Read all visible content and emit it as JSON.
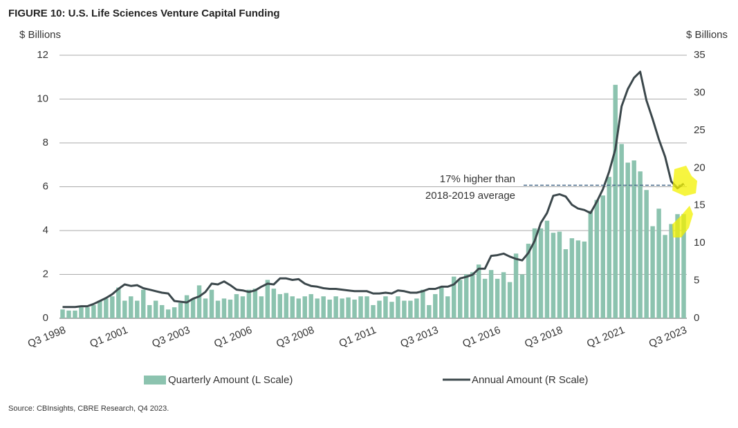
{
  "chart_data": {
    "type": "bar_line",
    "title": "FIGURE 10: U.S. Life Sciences Venture Capital Funding",
    "y_label": "$ Billions",
    "y2_label": "$ Billions",
    "source": "Source: CBInsights, CBRE Research, Q4 2023.",
    "annotation": [
      "17% higher than",
      "2018-2019 average"
    ],
    "reference_line": {
      "value": 17.7,
      "axis": "y2"
    },
    "categories": [
      "Q3 1998",
      null,
      null,
      null,
      null,
      null,
      null,
      null,
      null,
      null,
      "Q1 2001",
      null,
      null,
      null,
      null,
      null,
      null,
      null,
      null,
      null,
      "Q3 2003",
      null,
      null,
      null,
      null,
      null,
      null,
      null,
      null,
      null,
      "Q1 2006",
      null,
      null,
      null,
      null,
      null,
      null,
      null,
      null,
      null,
      "Q3 2008",
      null,
      null,
      null,
      null,
      null,
      null,
      null,
      null,
      null,
      "Q1 2011",
      null,
      null,
      null,
      null,
      null,
      null,
      null,
      null,
      null,
      "Q3 2013",
      null,
      null,
      null,
      null,
      null,
      null,
      null,
      null,
      null,
      "Q1 2016",
      null,
      null,
      null,
      null,
      null,
      null,
      null,
      null,
      null,
      "Q3 2018",
      null,
      null,
      null,
      null,
      null,
      null,
      null,
      null,
      null,
      "Q1 2021",
      null,
      null,
      null,
      null,
      null,
      null,
      null,
      null,
      null,
      "Q3 2023"
    ],
    "series": [
      {
        "name": "Quarterly Amount (L Scale)",
        "type": "bar",
        "color": "#8cc3af",
        "values": [
          0.4,
          0.35,
          0.35,
          0.5,
          0.5,
          0.6,
          0.8,
          0.9,
          1.0,
          1.4,
          0.8,
          1.0,
          0.8,
          1.3,
          0.6,
          0.8,
          0.6,
          0.4,
          0.5,
          0.7,
          1.05,
          0.9,
          1.5,
          0.9,
          1.3,
          0.8,
          0.9,
          0.85,
          1.1,
          1.0,
          1.3,
          1.35,
          1.0,
          1.75,
          1.35,
          1.1,
          1.15,
          1.0,
          0.9,
          1.0,
          1.1,
          0.9,
          1.0,
          0.85,
          1.0,
          0.9,
          0.95,
          0.85,
          1.0,
          1.0,
          0.6,
          0.8,
          1.0,
          0.75,
          1.0,
          0.8,
          0.8,
          0.9,
          1.3,
          0.6,
          1.1,
          1.4,
          1.0,
          1.9,
          1.75,
          2.0,
          2.1,
          2.45,
          1.8,
          2.2,
          1.8,
          2.1,
          1.65,
          2.95,
          2.0,
          3.4,
          4.1,
          4.1,
          4.45,
          3.9,
          3.95,
          3.15,
          3.65,
          3.55,
          3.5,
          4.9,
          5.4,
          5.6,
          6.45,
          10.65,
          7.95,
          7.1,
          7.2,
          6.7,
          5.85,
          4.2,
          5.0,
          3.8,
          4.3,
          4.75,
          4.75
        ]
      },
      {
        "name": "Annual Amount (R Scale)",
        "type": "line",
        "axis": "y2",
        "color": "#3b474b",
        "values": [
          1.5,
          1.5,
          1.5,
          1.6,
          1.6,
          1.9,
          2.3,
          2.7,
          3.2,
          3.9,
          4.5,
          4.3,
          4.4,
          4.0,
          3.8,
          3.6,
          3.4,
          3.3,
          2.3,
          2.2,
          2.1,
          2.6,
          2.9,
          3.5,
          4.6,
          4.5,
          4.9,
          4.4,
          3.8,
          3.7,
          3.5,
          3.7,
          4.2,
          4.6,
          4.5,
          5.3,
          5.3,
          5.1,
          5.2,
          4.6,
          4.3,
          4.2,
          4.0,
          3.9,
          3.9,
          3.8,
          3.7,
          3.6,
          3.6,
          3.6,
          3.3,
          3.3,
          3.4,
          3.3,
          3.7,
          3.6,
          3.4,
          3.4,
          3.6,
          3.9,
          3.9,
          4.2,
          4.2,
          4.5,
          5.3,
          5.5,
          5.8,
          6.6,
          6.6,
          8.3,
          8.4,
          8.6,
          8.2,
          7.9,
          7.7,
          8.7,
          10.3,
          12.7,
          14.0,
          16.3,
          16.5,
          16.2,
          15.1,
          14.6,
          14.4,
          14.0,
          15.5,
          17.2,
          19.5,
          22.5,
          28.2,
          30.5,
          32.0,
          32.8,
          29.0,
          26.5,
          23.8,
          21.5,
          18.2,
          17.3,
          17.9
        ]
      }
    ],
    "ylim": [
      0,
      12
    ],
    "yticks": [
      0,
      2,
      4,
      6,
      8,
      10,
      12
    ],
    "y2lim": [
      0,
      35
    ],
    "y2ticks": [
      0,
      5,
      10,
      15,
      20,
      25,
      30,
      35
    ],
    "grid": true
  }
}
